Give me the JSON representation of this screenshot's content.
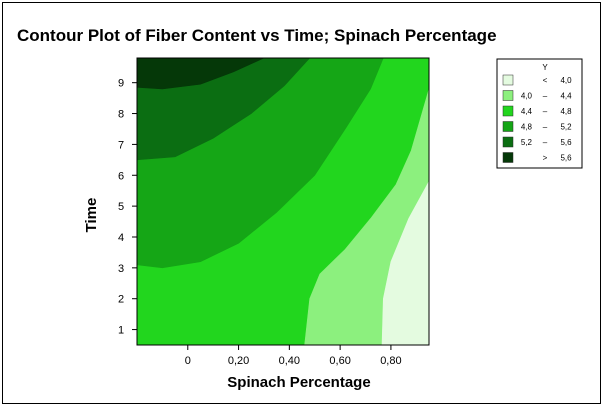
{
  "chart_data": {
    "type": "contour",
    "title": "Contour Plot of Fiber Content vs Time; Spinach Percentage",
    "xlabel": "Spinach Percentage",
    "ylabel": "Time",
    "xlim": [
      -0.2,
      0.95
    ],
    "ylim": [
      0.5,
      9.8
    ],
    "x_ticks": [
      {
        "value": 0.0,
        "label": "0"
      },
      {
        "value": 0.2,
        "label": "0,20"
      },
      {
        "value": 0.4,
        "label": "0,40"
      },
      {
        "value": 0.6,
        "label": "0,60"
      },
      {
        "value": 0.8,
        "label": "0,80"
      }
    ],
    "y_ticks": [
      {
        "value": 1,
        "label": "1"
      },
      {
        "value": 2,
        "label": "2"
      },
      {
        "value": 3,
        "label": "3"
      },
      {
        "value": 4,
        "label": "4"
      },
      {
        "value": 5,
        "label": "5"
      },
      {
        "value": 6,
        "label": "6"
      },
      {
        "value": 7,
        "label": "7"
      },
      {
        "value": 8,
        "label": "8"
      },
      {
        "value": 9,
        "label": "9"
      }
    ],
    "legend": {
      "title": "Y",
      "placement": "right",
      "levels": [
        {
          "lo": "",
          "op": "<",
          "hi": "4,0",
          "color": "#e4fbe0"
        },
        {
          "lo": "4,0",
          "op": "–",
          "hi": "4,4",
          "color": "#8cf07e"
        },
        {
          "lo": "4,4",
          "op": "–",
          "hi": "4,8",
          "color": "#22d61e"
        },
        {
          "lo": "4,8",
          "op": "–",
          "hi": "5,2",
          "color": "#15a616"
        },
        {
          "lo": "5,2",
          "op": "–",
          "hi": "5,6",
          "color": "#0b6e12"
        },
        {
          "lo": "",
          "op": ">",
          "hi": "5,6",
          "color": "#053808"
        }
      ]
    },
    "contours": [
      {
        "level": "4,0",
        "points": [
          [
            0.46,
            0.5
          ],
          [
            0.48,
            2.0
          ],
          [
            0.52,
            2.8
          ],
          [
            0.62,
            3.6
          ],
          [
            0.72,
            4.6
          ],
          [
            0.82,
            5.7
          ],
          [
            0.88,
            6.8
          ],
          [
            0.95,
            8.8
          ]
        ]
      },
      {
        "level": "4,4",
        "points": [
          [
            0.765,
            0.5
          ],
          [
            0.77,
            2.0
          ],
          [
            0.8,
            3.2
          ],
          [
            0.87,
            4.6
          ],
          [
            0.95,
            5.8
          ]
        ]
      },
      {
        "level": "4,8",
        "points": [
          [
            -0.2,
            3.1
          ],
          [
            -0.1,
            3.0
          ],
          [
            0.05,
            3.2
          ],
          [
            0.2,
            3.8
          ],
          [
            0.35,
            4.8
          ],
          [
            0.5,
            6.0
          ],
          [
            0.62,
            7.5
          ],
          [
            0.72,
            8.8
          ],
          [
            0.77,
            9.8
          ]
        ]
      },
      {
        "level": "5,2",
        "points": [
          [
            -0.2,
            6.5
          ],
          [
            -0.05,
            6.6
          ],
          [
            0.1,
            7.2
          ],
          [
            0.25,
            8.0
          ],
          [
            0.38,
            8.9
          ],
          [
            0.48,
            9.8
          ]
        ]
      },
      {
        "level": "5,6",
        "points": [
          [
            -0.2,
            8.85
          ],
          [
            -0.1,
            8.8
          ],
          [
            0.05,
            8.95
          ],
          [
            0.18,
            9.35
          ],
          [
            0.3,
            9.8
          ]
        ]
      }
    ]
  }
}
